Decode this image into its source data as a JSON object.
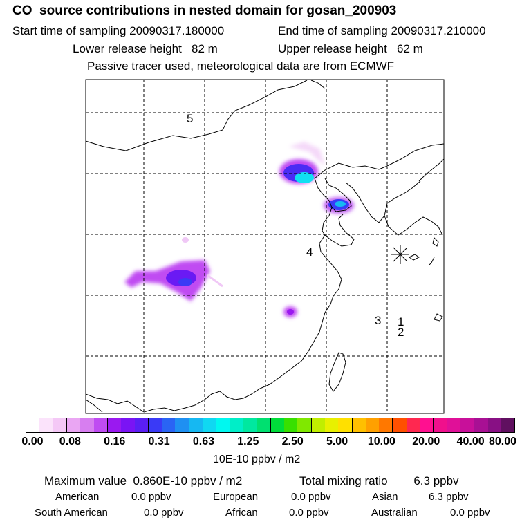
{
  "header": {
    "title": "CO  source contributions in nested domain for gosan_200903",
    "start_time": "Start time of sampling 20090317.180000",
    "end_time": "End time of sampling 20090317.210000",
    "lower_height": "Lower release height   82 m",
    "upper_height": "Upper release height   62 m",
    "passive_tracer": "Passive tracer used, meteorological data are from ECMWF"
  },
  "map": {
    "region_labels": [
      "5",
      "4",
      "3",
      "1",
      "2"
    ],
    "receptor_marker": "receptor-star"
  },
  "colorbar": {
    "tick_labels": [
      "0.00",
      "0.08",
      "0.16",
      "0.31",
      "0.63",
      "1.25",
      "2.50",
      "5.00",
      "10.00",
      "20.00",
      "40.00",
      "80.00"
    ],
    "colors": [
      "#ffffff",
      "#fbe3fb",
      "#f4c8f6",
      "#eaa6f3",
      "#d77ef0",
      "#bf4cf2",
      "#9a19f0",
      "#7a14f4",
      "#5a1ff4",
      "#3a3af6",
      "#2a64f4",
      "#1f90f2",
      "#16b8f2",
      "#10d8f2",
      "#00f8f0",
      "#00eec8",
      "#00e8a0",
      "#00e070",
      "#00dd3a",
      "#38e000",
      "#80e800",
      "#c0ee00",
      "#e8f000",
      "#ffe000",
      "#ffc000",
      "#ffa000",
      "#ff7800",
      "#ff5000",
      "#ff2850",
      "#ff1090",
      "#f0108c",
      "#e01098",
      "#c8109a",
      "#a81094",
      "#881084",
      "#601060"
    ],
    "units": "10E-10 ppbv / m2"
  },
  "summary": {
    "max_value": "Maximum value  0.860E-10 ppbv / m2",
    "total_mixing": "Total mixing ratio        6.3 ppbv",
    "regions": [
      {
        "name": "American",
        "value": "0.0 ppbv"
      },
      {
        "name": "European",
        "value": "0.0 ppbv"
      },
      {
        "name": "Asian",
        "value": "6.3 ppbv"
      },
      {
        "name": "South American",
        "value": "0.0 ppbv"
      },
      {
        "name": "African",
        "value": "0.0 ppbv"
      },
      {
        "name": "Australian",
        "value": "0.0 ppbv"
      }
    ]
  }
}
